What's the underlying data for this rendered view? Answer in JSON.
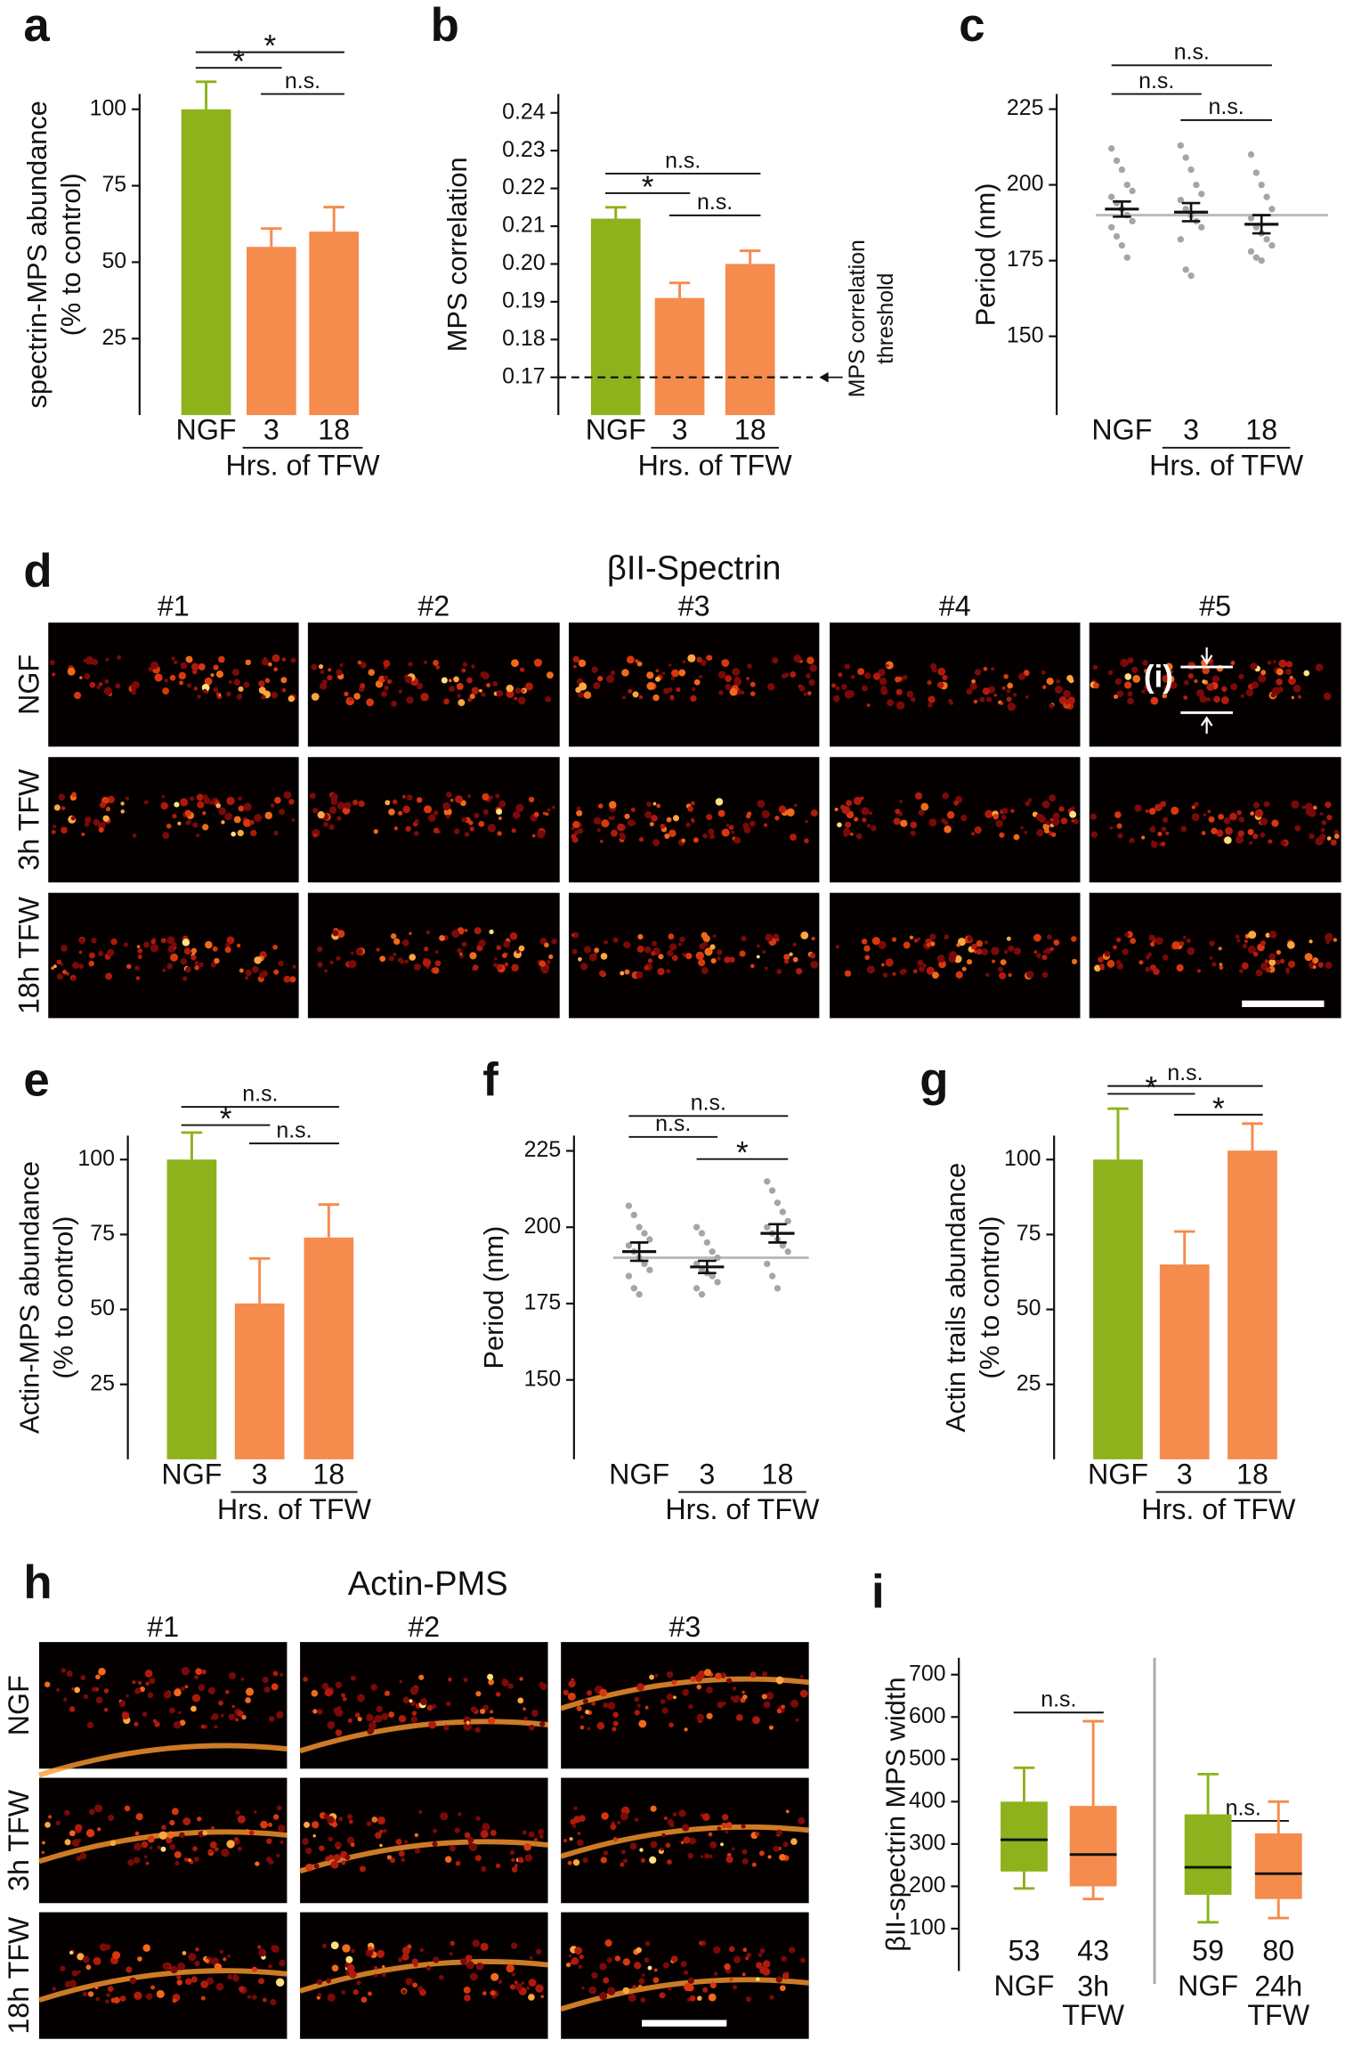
{
  "chart_data": [
    {
      "panel": "a",
      "type": "bar",
      "ylabel": [
        "spectrin-MPS abundance",
        "(% to control)"
      ],
      "categories": [
        "NGF",
        "3",
        "18"
      ],
      "xlabel": "Hrs. of TFW",
      "values": [
        100,
        55,
        60
      ],
      "errors": [
        9,
        6,
        8
      ],
      "colors": [
        "#8db21c",
        "#f58b4c",
        "#f58b4c"
      ],
      "ylim": [
        0,
        105
      ],
      "yticks": [
        25,
        50,
        75,
        100
      ],
      "significance": [
        {
          "pair": [
            0,
            2
          ],
          "label": "*"
        },
        {
          "pair": [
            0,
            1
          ],
          "label": "*"
        },
        {
          "pair": [
            1,
            2
          ],
          "label": "n.s."
        }
      ]
    },
    {
      "panel": "b",
      "type": "bar",
      "ylabel": [
        "MPS correlation"
      ],
      "categories": [
        "NGF",
        "3",
        "18"
      ],
      "xlabel": "Hrs. of TFW",
      "values": [
        0.212,
        0.191,
        0.2
      ],
      "errors": [
        0.003,
        0.004,
        0.0035
      ],
      "colors": [
        "#8db21c",
        "#f58b4c",
        "#f58b4c"
      ],
      "ylim": [
        0.16,
        0.245
      ],
      "yticks": [
        0.17,
        0.18,
        0.19,
        {
          "value": 0.2,
          "label": "0.20"
        },
        0.21,
        0.22,
        0.23,
        0.24
      ],
      "threshold": 0.17,
      "threshold_label": [
        "MPS correlation",
        "threshold"
      ],
      "significance": [
        {
          "pair": [
            0,
            2
          ],
          "label": "n.s."
        },
        {
          "pair": [
            0,
            1
          ],
          "label": "*"
        },
        {
          "pair": [
            1,
            2
          ],
          "label": "n.s."
        }
      ]
    },
    {
      "panel": "c",
      "type": "dot",
      "ylabel": [
        "Period (nm)"
      ],
      "categories": [
        "NGF",
        "3",
        "18"
      ],
      "xlabel": "Hrs. of TFW",
      "points": [
        [
          212,
          208,
          205,
          200,
          198,
          196,
          194,
          192,
          190,
          188,
          186,
          183,
          180,
          176
        ],
        [
          213,
          209,
          205,
          200,
          197,
          195,
          192,
          190,
          188,
          186,
          182,
          172,
          170
        ],
        [
          210,
          204,
          200,
          196,
          192,
          189,
          186,
          184,
          182,
          180,
          178,
          176,
          175
        ]
      ],
      "means": [
        192,
        191,
        187
      ],
      "errors": [
        2.5,
        3,
        3
      ],
      "hline": 190,
      "ylim": [
        124,
        230
      ],
      "yticks": [
        150,
        175,
        200,
        225
      ],
      "significance": [
        {
          "pair": [
            0,
            2
          ],
          "label": "n.s."
        },
        {
          "pair": [
            0,
            1
          ],
          "label": "n.s."
        },
        {
          "pair": [
            1,
            2
          ],
          "label": "n.s."
        }
      ]
    },
    {
      "panel": "e",
      "type": "bar",
      "ylabel": [
        "Actin-MPS abundance",
        "(% to control)"
      ],
      "categories": [
        "NGF",
        "3",
        "18"
      ],
      "xlabel": "Hrs. of TFW",
      "values": [
        100,
        52,
        74
      ],
      "errors": [
        9,
        15,
        11
      ],
      "colors": [
        "#8db21c",
        "#f58b4c",
        "#f58b4c"
      ],
      "ylim": [
        0,
        108
      ],
      "yticks": [
        25,
        50,
        75,
        100
      ],
      "significance": [
        {
          "pair": [
            0,
            2
          ],
          "label": "n.s."
        },
        {
          "pair": [
            0,
            1
          ],
          "label": "*"
        },
        {
          "pair": [
            1,
            2
          ],
          "label": "n.s."
        }
      ]
    },
    {
      "panel": "f",
      "type": "dot",
      "ylabel": [
        "Period (nm)"
      ],
      "categories": [
        "NGF",
        "3",
        "18"
      ],
      "xlabel": "Hrs. of TFW",
      "points": [
        [
          207,
          204,
          200,
          198,
          196,
          194,
          192,
          190,
          188,
          186,
          184,
          180,
          178
        ],
        [
          200,
          198,
          195,
          192,
          190,
          188,
          186,
          185,
          184,
          182,
          180,
          178
        ],
        [
          215,
          212,
          208,
          205,
          202,
          200,
          198,
          196,
          194,
          192,
          188,
          184,
          180
        ]
      ],
      "means": [
        192,
        187,
        198
      ],
      "errors": [
        3,
        2,
        3
      ],
      "hline": 190,
      "ylim": [
        124,
        230
      ],
      "yticks": [
        150,
        175,
        200,
        225
      ],
      "significance": [
        {
          "pair": [
            0,
            2
          ],
          "label": "n.s."
        },
        {
          "pair": [
            0,
            1
          ],
          "label": "n.s."
        },
        {
          "pair": [
            1,
            2
          ],
          "label": "*"
        }
      ]
    },
    {
      "panel": "g",
      "type": "bar",
      "ylabel": [
        "Actin trails abundance",
        "(% to control)"
      ],
      "categories": [
        "NGF",
        "3",
        "18"
      ],
      "xlabel": "Hrs. of TFW",
      "values": [
        100,
        65,
        103
      ],
      "errors": [
        17,
        11,
        9
      ],
      "colors": [
        "#8db21c",
        "#f58b4c",
        "#f58b4c"
      ],
      "ylim": [
        0,
        108
      ],
      "yticks": [
        25,
        50,
        75,
        100
      ],
      "significance": [
        {
          "pair": [
            0,
            2
          ],
          "label": "n.s."
        },
        {
          "pair": [
            0,
            1
          ],
          "label": "*"
        },
        {
          "pair": [
            1,
            2
          ],
          "label": "*"
        }
      ]
    },
    {
      "panel": "i",
      "type": "box",
      "ylabel": [
        "βII-spectrin MPS width"
      ],
      "categories": [
        "NGF",
        "3h TFW",
        "NGF",
        "24h TFW"
      ],
      "boxes": [
        {
          "min": 195,
          "q1": 235,
          "median": 310,
          "q3": 400,
          "max": 480
        },
        {
          "min": 170,
          "q1": 200,
          "median": 275,
          "q3": 390,
          "max": 590
        },
        {
          "min": 115,
          "q1": 180,
          "median": 245,
          "q3": 370,
          "max": 465
        },
        {
          "min": 125,
          "q1": 170,
          "median": 230,
          "q3": 325,
          "max": 400
        }
      ],
      "n": [
        53,
        43,
        59,
        80
      ],
      "colors": [
        "#8db21c",
        "#f58b4c",
        "#8db21c",
        "#f58b4c"
      ],
      "ylim": [
        0,
        740
      ],
      "yticks": [
        100,
        200,
        300,
        400,
        500,
        600,
        700
      ],
      "significance": [
        {
          "pair": [
            0,
            1
          ],
          "label": "n.s."
        },
        {
          "pair": [
            2,
            3
          ],
          "label": "n.s."
        }
      ]
    }
  ],
  "image_panels": [
    {
      "panel": "d",
      "title": "βII-Spectrin",
      "columns": [
        "#1",
        "#2",
        "#3",
        "#4",
        "#5"
      ],
      "rows": [
        "NGF",
        "3h TFW",
        "18h TFW"
      ],
      "annotation": "(i)"
    },
    {
      "panel": "h",
      "title": "Actin-PMS",
      "columns": [
        "#1",
        "#2",
        "#3"
      ],
      "rows": [
        "NGF",
        "3h TFW",
        "18h TFW"
      ]
    }
  ]
}
